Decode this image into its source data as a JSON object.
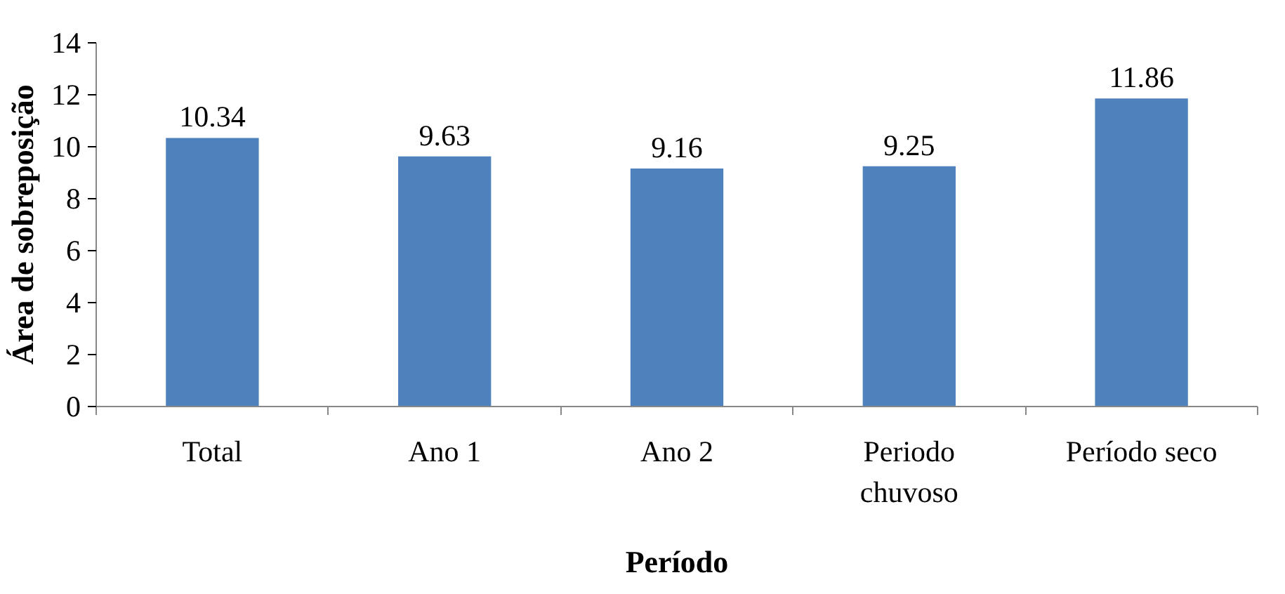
{
  "chart_data": {
    "type": "bar",
    "xlabel": "Período",
    "ylabel": "Área de sobreposição",
    "categories": [
      "Total",
      "Ano 1",
      "Ano 2",
      "Periodo chuvoso",
      "Período seco"
    ],
    "values": [
      10.34,
      9.63,
      9.16,
      9.25,
      11.86
    ],
    "color": "#4f81bd",
    "ylim": [
      0,
      14
    ],
    "yticks": [
      0,
      2,
      4,
      6,
      8,
      10,
      12,
      14
    ],
    "grid": false,
    "data_labels": true
  }
}
